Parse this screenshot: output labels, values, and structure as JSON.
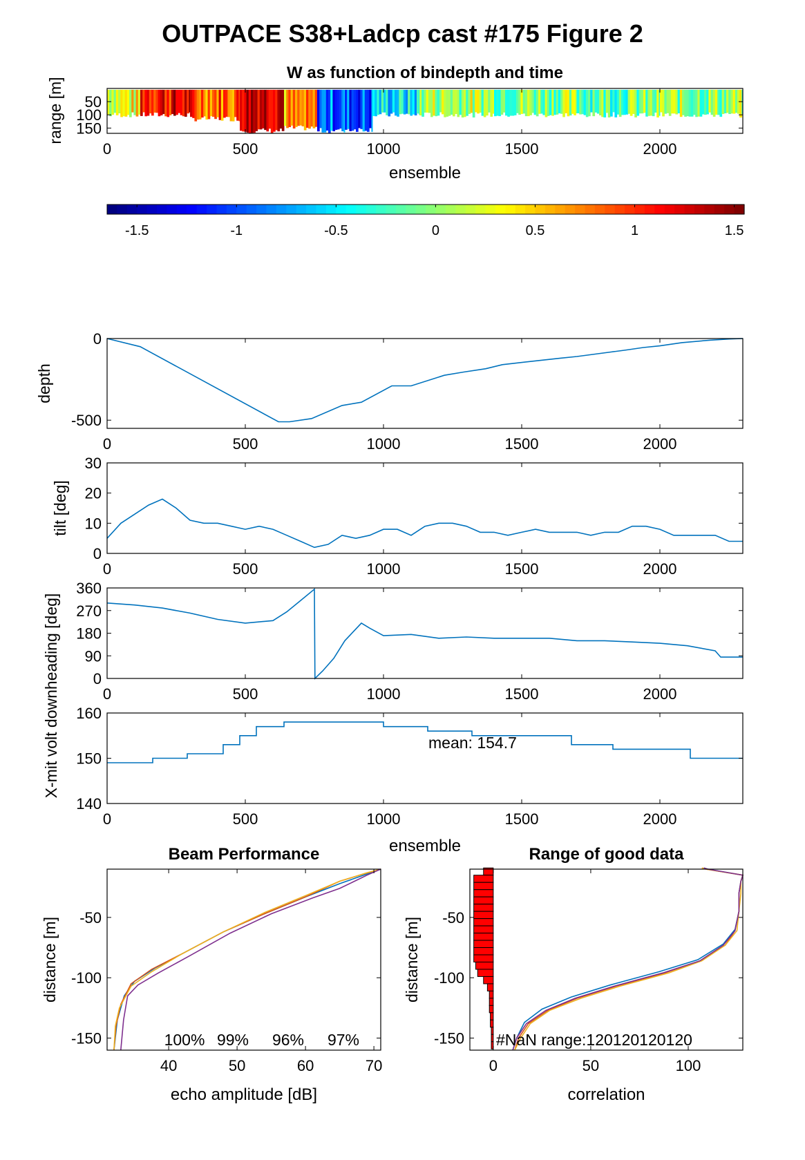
{
  "figure_title": "OUTPACE S38+Ladcp cast #175 Figure 2",
  "chart_data": [
    {
      "id": "w_heatmap",
      "type": "heatmap",
      "title": "W as function of bindepth and time",
      "xlabel": "ensemble",
      "ylabel": "range [m]",
      "xlim": [
        0,
        2300
      ],
      "ylim": [
        170,
        0
      ],
      "xticks": [
        "0",
        "500",
        "1000",
        "1500",
        "2000"
      ],
      "yticks": [
        "50",
        "100",
        "150"
      ],
      "colormap": "jet",
      "clim": [
        -1.65,
        1.55
      ],
      "colorbar_ticks": [
        "-1.5",
        "-1",
        "-0.5",
        "0",
        "0.5",
        "1",
        "1.5"
      ],
      "segments": [
        {
          "x": [
            0,
            120
          ],
          "w": 0.3,
          "depth": 110
        },
        {
          "x": [
            120,
            300
          ],
          "w": 1.2,
          "depth": 110
        },
        {
          "x": [
            300,
            480
          ],
          "w": 0.9,
          "depth": 125
        },
        {
          "x": [
            480,
            640
          ],
          "w": 1.45,
          "depth": 170
        },
        {
          "x": [
            640,
            760
          ],
          "w": 0.6,
          "depth": 160
        },
        {
          "x": [
            760,
            860
          ],
          "w": -0.9,
          "depth": 170
        },
        {
          "x": [
            860,
            960
          ],
          "w": -1.0,
          "depth": 165
        },
        {
          "x": [
            960,
            1130
          ],
          "w": -0.5,
          "depth": 110
        },
        {
          "x": [
            1130,
            1400
          ],
          "w": 0.1,
          "depth": 110
        },
        {
          "x": [
            1400,
            1700
          ],
          "w": 0.0,
          "depth": 110
        },
        {
          "x": [
            1700,
            2000
          ],
          "w": -0.1,
          "depth": 110
        },
        {
          "x": [
            2000,
            2300
          ],
          "w": 0.0,
          "depth": 110
        }
      ]
    },
    {
      "id": "depth",
      "type": "line",
      "ylabel": "depth",
      "xlim": [
        0,
        2300
      ],
      "ylim": [
        -550,
        0
      ],
      "xticks": [
        "0",
        "500",
        "1000",
        "1500",
        "2000"
      ],
      "yticks": [
        "0",
        "-500"
      ],
      "x": [
        0,
        120,
        620,
        660,
        740,
        850,
        920,
        1030,
        1100,
        1220,
        1290,
        1370,
        1430,
        1560,
        1640,
        1700,
        1880,
        1940,
        2000,
        2080,
        2180,
        2250,
        2300
      ],
      "y": [
        0,
        -50,
        -510,
        -510,
        -490,
        -410,
        -390,
        -290,
        -290,
        -225,
        -205,
        -185,
        -160,
        -135,
        -120,
        -110,
        -70,
        -55,
        -45,
        -25,
        -10,
        -3,
        0
      ]
    },
    {
      "id": "tilt",
      "type": "line",
      "ylabel": "tilt [deg]",
      "xlim": [
        0,
        2300
      ],
      "ylim": [
        0,
        30
      ],
      "xticks": [
        "0",
        "500",
        "1000",
        "1500",
        "2000"
      ],
      "yticks": [
        "0",
        "10",
        "20",
        "30"
      ],
      "x": [
        0,
        50,
        100,
        150,
        200,
        250,
        300,
        350,
        400,
        450,
        500,
        550,
        600,
        650,
        700,
        750,
        800,
        850,
        900,
        950,
        1000,
        1050,
        1100,
        1150,
        1200,
        1250,
        1300,
        1350,
        1400,
        1450,
        1500,
        1550,
        1600,
        1650,
        1700,
        1750,
        1800,
        1850,
        1900,
        1950,
        2000,
        2050,
        2100,
        2150,
        2200,
        2250,
        2300
      ],
      "y": [
        5,
        10,
        13,
        16,
        18,
        15,
        11,
        10,
        10,
        9,
        8,
        9,
        8,
        6,
        4,
        2,
        3,
        6,
        5,
        6,
        8,
        8,
        6,
        9,
        10,
        10,
        9,
        7,
        7,
        6,
        7,
        8,
        7,
        7,
        7,
        6,
        7,
        7,
        9,
        9,
        8,
        6,
        6,
        6,
        6,
        4,
        4
      ]
    },
    {
      "id": "heading",
      "type": "line",
      "ylabel": "heading [deg]",
      "xlim": [
        0,
        2300
      ],
      "ylim": [
        0,
        360
      ],
      "xticks": [
        "0",
        "500",
        "1000",
        "1500",
        "2000"
      ],
      "yticks": [
        "0",
        "90",
        "180",
        "270",
        "360"
      ],
      "x": [
        0,
        100,
        200,
        300,
        400,
        500,
        600,
        650,
        700,
        750,
        752,
        780,
        820,
        860,
        920,
        950,
        1000,
        1100,
        1200,
        1300,
        1400,
        1500,
        1600,
        1700,
        1800,
        1900,
        2000,
        2100,
        2200,
        2220,
        2300
      ],
      "y": [
        300,
        292,
        280,
        260,
        235,
        220,
        230,
        265,
        310,
        355,
        0,
        30,
        80,
        150,
        220,
        200,
        170,
        175,
        160,
        165,
        160,
        160,
        160,
        150,
        150,
        145,
        140,
        130,
        110,
        85,
        85
      ]
    },
    {
      "id": "xmit_volt",
      "type": "line",
      "ylabel": "X-mit volt down",
      "xlabel": "ensemble",
      "xlim": [
        0,
        2300
      ],
      "ylim": [
        140,
        160
      ],
      "xticks": [
        "0",
        "500",
        "1000",
        "1500",
        "2000"
      ],
      "yticks": [
        "140",
        "150",
        "160"
      ],
      "annotation": "mean: 154.7",
      "x": [
        0,
        165,
        165,
        290,
        290,
        420,
        420,
        480,
        480,
        540,
        540,
        640,
        640,
        1000,
        1000,
        1160,
        1160,
        1320,
        1320,
        1680,
        1680,
        1830,
        1830,
        2110,
        2110,
        2300
      ],
      "y": [
        149,
        149,
        150,
        150,
        151,
        151,
        153,
        153,
        155,
        155,
        157,
        157,
        158,
        158,
        157,
        157,
        156,
        156,
        155,
        155,
        153,
        153,
        152,
        152,
        150,
        150
      ]
    },
    {
      "id": "beam_performance",
      "type": "line",
      "title": "Beam Performance",
      "xlabel": "echo amplitude [dB]",
      "ylabel": "distance [m]",
      "xlim": [
        31,
        71
      ],
      "ylim": [
        -160,
        -10
      ],
      "xticks": [
        "40",
        "50",
        "60",
        "70"
      ],
      "yticks": [
        "-50",
        "-100",
        "-150"
      ],
      "annotations": [
        "100%",
        "99%",
        "96%",
        "97%"
      ],
      "series": [
        {
          "color": "#0072bd",
          "x": [
            32,
            32.5,
            33.5,
            35,
            38,
            42,
            48,
            54,
            60,
            65,
            69,
            71
          ],
          "y": [
            -160,
            -135,
            -115,
            -103,
            -92,
            -80,
            -62,
            -47,
            -33,
            -22,
            -14,
            -10
          ]
        },
        {
          "color": "#d95319",
          "x": [
            32,
            32.3,
            33,
            34.5,
            37.5,
            42,
            48,
            54,
            60,
            65,
            68.5,
            71
          ],
          "y": [
            -160,
            -140,
            -122,
            -105,
            -93,
            -80,
            -62,
            -47,
            -33,
            -20,
            -14,
            -10
          ]
        },
        {
          "color": "#edb120",
          "x": [
            32,
            32.2,
            32.8,
            34.5,
            37.5,
            42,
            48,
            54,
            60,
            65,
            69,
            71
          ],
          "y": [
            -160,
            -140,
            -125,
            -107,
            -95,
            -80,
            -62,
            -46,
            -32,
            -20,
            -13,
            -10
          ]
        },
        {
          "color": "#7e2f8e",
          "x": [
            33,
            33.4,
            34,
            35.5,
            38.5,
            43,
            49,
            55,
            61,
            65,
            69,
            71
          ],
          "y": [
            -160,
            -135,
            -115,
            -106,
            -96,
            -82,
            -63,
            -47,
            -34,
            -26,
            -15,
            -10
          ]
        }
      ]
    },
    {
      "id": "range_good_data",
      "type": "line",
      "title": "Range of good data",
      "xlabel": "correlation",
      "ylabel": "distance [m]",
      "xlim": [
        -12,
        128
      ],
      "ylim": [
        -160,
        -10
      ],
      "xticks": [
        "0",
        "50",
        "100"
      ],
      "yticks": [
        "-50",
        "-100",
        "-150"
      ],
      "annotation": "#NaN range:120120120120",
      "bars": [
        {
          "y": -12,
          "width": 5
        },
        {
          "y": -18,
          "width": 10
        },
        {
          "y": -24,
          "width": 10
        },
        {
          "y": -30,
          "width": 10
        },
        {
          "y": -36,
          "width": 10
        },
        {
          "y": -42,
          "width": 10
        },
        {
          "y": -48,
          "width": 10
        },
        {
          "y": -54,
          "width": 10
        },
        {
          "y": -60,
          "width": 10
        },
        {
          "y": -66,
          "width": 10
        },
        {
          "y": -72,
          "width": 10
        },
        {
          "y": -78,
          "width": 10
        },
        {
          "y": -84,
          "width": 10
        },
        {
          "y": -90,
          "width": 9
        },
        {
          "y": -96,
          "width": 8
        },
        {
          "y": -102,
          "width": 5
        },
        {
          "y": -108,
          "width": 3
        },
        {
          "y": -114,
          "width": 2
        },
        {
          "y": -120,
          "width": 2
        },
        {
          "y": -126,
          "width": 2
        },
        {
          "y": -132,
          "width": 1.5
        },
        {
          "y": -138,
          "width": 1.5
        },
        {
          "y": -144,
          "width": 1
        },
        {
          "y": -150,
          "width": 1
        },
        {
          "y": -156,
          "width": 1
        }
      ],
      "series": [
        {
          "color": "#0072bd",
          "x": [
            10,
            12,
            16,
            25,
            40,
            60,
            85,
            105,
            118,
            124,
            126,
            126,
            127,
            128,
            110,
            108
          ],
          "y": [
            -160,
            -150,
            -137,
            -126,
            -116,
            -106,
            -95,
            -85,
            -72,
            -60,
            -45,
            -30,
            -20,
            -15,
            -10,
            -9
          ]
        },
        {
          "color": "#d95319",
          "x": [
            11,
            13,
            18,
            28,
            43,
            63,
            88,
            106,
            119,
            124,
            126,
            126,
            127,
            128,
            109,
            107
          ],
          "y": [
            -160,
            -150,
            -138,
            -127,
            -117,
            -107,
            -96,
            -86,
            -73,
            -61,
            -45,
            -30,
            -20,
            -15,
            -10,
            -9
          ]
        },
        {
          "color": "#edb120",
          "x": [
            11,
            14,
            19,
            29,
            45,
            65,
            90,
            107,
            119,
            125,
            126,
            127,
            127,
            128,
            109,
            107
          ],
          "y": [
            -160,
            -150,
            -138,
            -127,
            -117,
            -107,
            -96,
            -86,
            -73,
            -61,
            -45,
            -30,
            -20,
            -15,
            -10,
            -9
          ]
        },
        {
          "color": "#7e2f8e",
          "x": [
            10,
            12,
            17,
            27,
            42,
            62,
            87,
            106,
            118,
            124,
            126,
            126,
            127,
            128,
            110,
            108
          ],
          "y": [
            -160,
            -150,
            -138,
            -127,
            -117,
            -107,
            -96,
            -86,
            -73,
            -61,
            -45,
            -30,
            -20,
            -15,
            -10,
            -9
          ]
        }
      ]
    }
  ]
}
